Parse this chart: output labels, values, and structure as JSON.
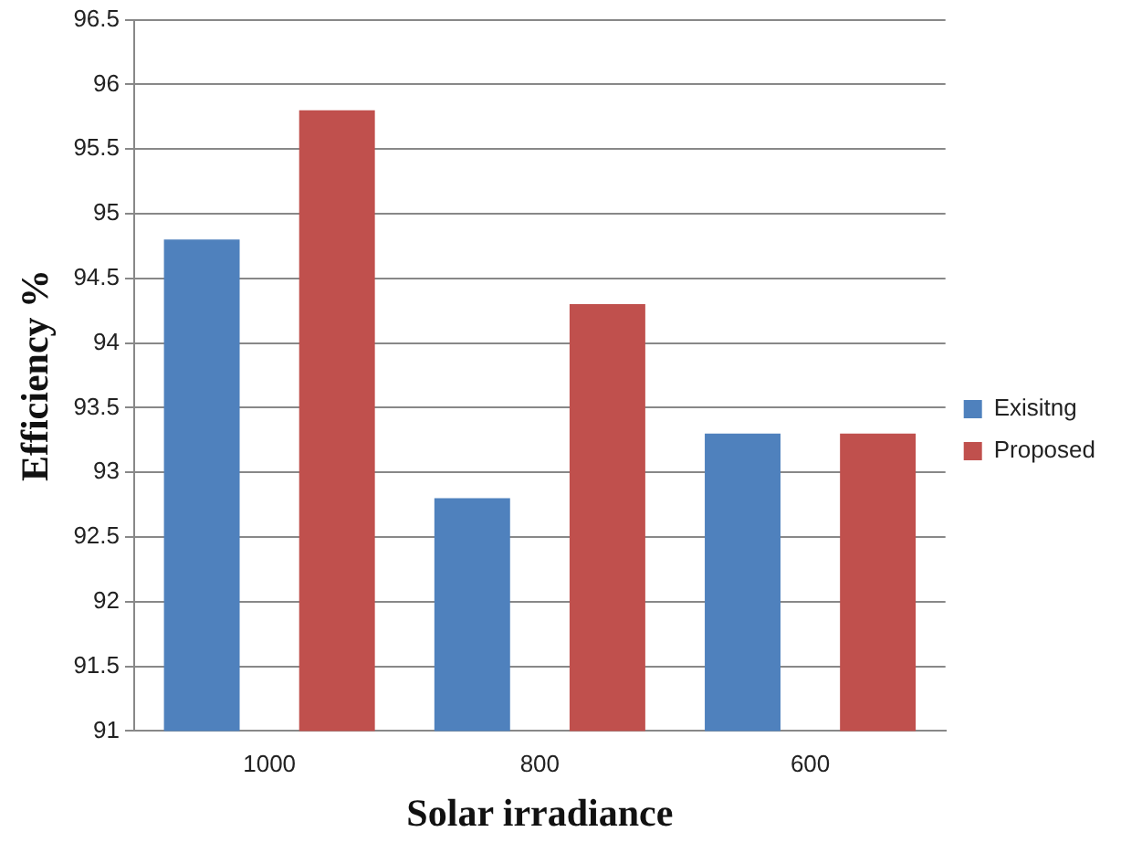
{
  "chart_data": {
    "type": "bar",
    "xlabel": "Solar irradiance",
    "ylabel": "Efficiency %",
    "categories": [
      "1000",
      "800",
      "600"
    ],
    "series": [
      {
        "name": "Exisitng",
        "color": "#4f81bd",
        "values": [
          94.8,
          92.8,
          93.3
        ]
      },
      {
        "name": "Proposed",
        "color": "#c0504d",
        "values": [
          95.8,
          94.3,
          93.3
        ]
      }
    ],
    "ylim": [
      91,
      96.5
    ],
    "yticks": [
      91,
      91.5,
      92,
      92.5,
      93,
      93.5,
      94,
      94.5,
      95,
      95.5,
      96,
      96.5
    ],
    "grid": "y",
    "legend": "right"
  }
}
